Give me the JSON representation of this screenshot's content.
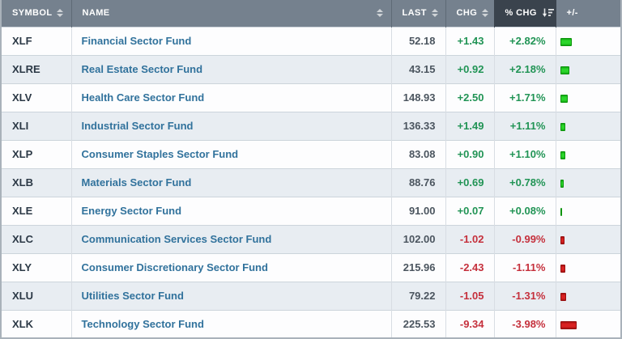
{
  "colors": {
    "positive_text": "#219455",
    "negative_text": "#c5303c",
    "positive_bar": "#2bd62b",
    "negative_bar": "#d92222",
    "header_bg": "#75818e",
    "sorted_header_bg": "#3a434d",
    "name_link": "#31729c"
  },
  "table": {
    "columns": [
      {
        "key": "symbol",
        "label": "SYMBOL",
        "sortable": true,
        "sorted": false
      },
      {
        "key": "name",
        "label": "NAME",
        "sortable": true,
        "sorted": false
      },
      {
        "key": "last",
        "label": "LAST",
        "sortable": true,
        "sorted": false
      },
      {
        "key": "chg",
        "label": "CHG",
        "sortable": true,
        "sorted": false
      },
      {
        "key": "pct",
        "label": "% CHG",
        "sortable": true,
        "sorted": true,
        "sort_direction": "desc"
      },
      {
        "key": "bar",
        "label": "+/-",
        "sortable": false,
        "sorted": false
      }
    ],
    "rows": [
      {
        "symbol": "XLF",
        "name": "Financial Sector Fund",
        "last": "52.18",
        "chg": "+1.43",
        "pct": "+2.82%",
        "pct_value": 2.82,
        "direction": "up"
      },
      {
        "symbol": "XLRE",
        "name": "Real Estate Sector Fund",
        "last": "43.15",
        "chg": "+0.92",
        "pct": "+2.18%",
        "pct_value": 2.18,
        "direction": "up"
      },
      {
        "symbol": "XLV",
        "name": "Health Care Sector Fund",
        "last": "148.93",
        "chg": "+2.50",
        "pct": "+1.71%",
        "pct_value": 1.71,
        "direction": "up"
      },
      {
        "symbol": "XLI",
        "name": "Industrial Sector Fund",
        "last": "136.33",
        "chg": "+1.49",
        "pct": "+1.11%",
        "pct_value": 1.11,
        "direction": "up"
      },
      {
        "symbol": "XLP",
        "name": "Consumer Staples Sector Fund",
        "last": "83.08",
        "chg": "+0.90",
        "pct": "+1.10%",
        "pct_value": 1.1,
        "direction": "up"
      },
      {
        "symbol": "XLB",
        "name": "Materials Sector Fund",
        "last": "88.76",
        "chg": "+0.69",
        "pct": "+0.78%",
        "pct_value": 0.78,
        "direction": "up"
      },
      {
        "symbol": "XLE",
        "name": "Energy Sector Fund",
        "last": "91.00",
        "chg": "+0.07",
        "pct": "+0.08%",
        "pct_value": 0.08,
        "direction": "up"
      },
      {
        "symbol": "XLC",
        "name": "Communication Services Sector Fund",
        "last": "102.00",
        "chg": "-1.02",
        "pct": "-0.99%",
        "pct_value": -0.99,
        "direction": "down"
      },
      {
        "symbol": "XLY",
        "name": "Consumer Discretionary Sector Fund",
        "last": "215.96",
        "chg": "-2.43",
        "pct": "-1.11%",
        "pct_value": -1.11,
        "direction": "down"
      },
      {
        "symbol": "XLU",
        "name": "Utilities Sector Fund",
        "last": "79.22",
        "chg": "-1.05",
        "pct": "-1.31%",
        "pct_value": -1.31,
        "direction": "down"
      },
      {
        "symbol": "XLK",
        "name": "Technology Sector Fund",
        "last": "225.53",
        "chg": "-9.34",
        "pct": "-3.98%",
        "pct_value": -3.98,
        "direction": "down"
      }
    ]
  }
}
